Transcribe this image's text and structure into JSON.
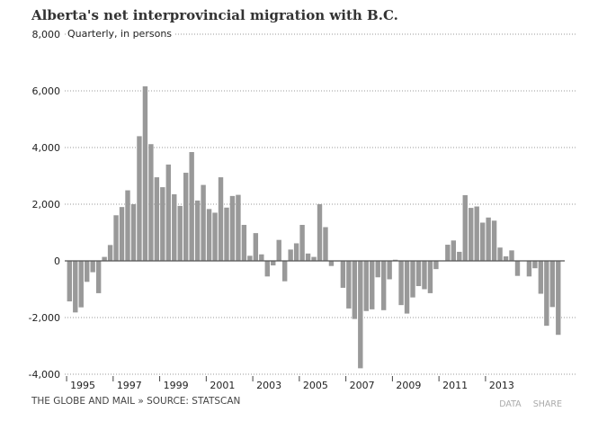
{
  "chart_data": {
    "type": "bar",
    "title": "Alberta's net interprovincial migration with B.C.",
    "subtitle": "Quarterly, in persons",
    "ylim": [
      -4000,
      8000
    ],
    "yticks": [
      8000,
      6000,
      4000,
      2000,
      0,
      -2000,
      -4000
    ],
    "ytick_labels": [
      "8,000",
      "6,000",
      "4,000",
      "2,000",
      "0",
      "-2,000",
      "-4,000"
    ],
    "xtick_labels": [
      "1995",
      "1997",
      "1999",
      "2001",
      "2003",
      "2005",
      "2007",
      "2009",
      "2011",
      "2013"
    ],
    "start": "1995 Q1",
    "frequency": "quarterly",
    "grid": true,
    "bar_color": "#999999",
    "values": [
      -1430,
      -1820,
      -1640,
      -740,
      -400,
      -1140,
      140,
      560,
      1610,
      1900,
      2490,
      2000,
      4400,
      6160,
      4120,
      2950,
      2600,
      3400,
      2350,
      1940,
      3110,
      3840,
      2130,
      2680,
      1830,
      1700,
      2950,
      1880,
      2290,
      2330,
      1270,
      180,
      980,
      230,
      -550,
      -160,
      740,
      -720,
      400,
      620,
      1270,
      260,
      140,
      2000,
      1190,
      -180,
      -20,
      -950,
      -1680,
      -2050,
      -3790,
      -1770,
      -1710,
      -580,
      -1740,
      -650,
      40,
      -1560,
      -1860,
      -1290,
      -890,
      -1000,
      -1140,
      -290,
      0,
      570,
      720,
      320,
      2320,
      1870,
      1920,
      1350,
      1530,
      1420,
      470,
      160,
      370,
      -530,
      0,
      -550,
      -260,
      -1160,
      -2290,
      -1630,
      -2610
    ]
  },
  "footer": "THE GLOBE AND MAIL » SOURCE: STATSCAN",
  "links": {
    "data": "DATA",
    "share": "SHARE"
  }
}
